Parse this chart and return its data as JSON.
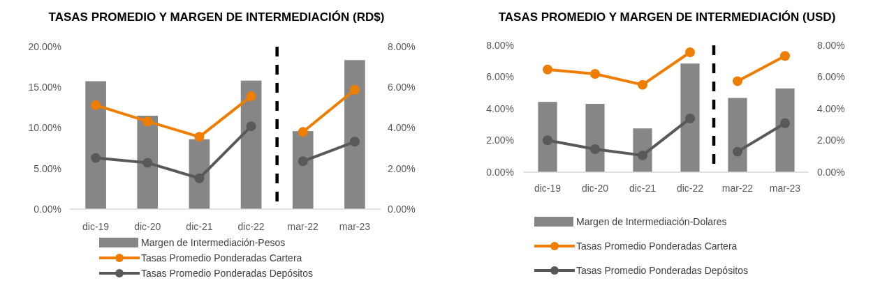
{
  "chart_data": [
    {
      "type": "bar",
      "title": "TASAS PROMEDIO Y MARGEN DE INTERMEDIACIÓN (RD$)",
      "categories": [
        "dic-19",
        "dic-20",
        "dic-21",
        "dic-22",
        "mar-22",
        "mar-23"
      ],
      "series": [
        {
          "name": "Margen de Intermediación-Pesos",
          "axis": "y2",
          "color": "#868686",
          "values": [
            6.3,
            4.6,
            3.44,
            6.33,
            3.84,
            7.34
          ]
        },
        {
          "name": "Tasas Promedio Ponderadas Cartera",
          "type": "line",
          "color": "#ef7d00",
          "values": [
            12.8,
            10.8,
            8.9,
            13.9,
            9.5,
            14.7
          ]
        },
        {
          "name": "Tasas Promedio Ponderadas Depósitos",
          "type": "line",
          "color": "#595959",
          "values": [
            6.3,
            5.7,
            3.8,
            10.2,
            5.9,
            8.3
          ]
        }
      ],
      "ylim": [
        0,
        20
      ],
      "yticks": [
        {
          "value": 0,
          "label": "0.00%"
        },
        {
          "value": 5,
          "label": "5.00%"
        },
        {
          "value": 10,
          "label": "10.00%"
        },
        {
          "value": 15,
          "label": "15.00%"
        },
        {
          "value": 20,
          "label": "20.00%"
        }
      ],
      "y2lim": [
        0,
        8
      ],
      "y2ticks": [
        {
          "value": 0,
          "label": "0.00%"
        },
        {
          "value": 2,
          "label": "2.00%"
        },
        {
          "value": 4,
          "label": "4.00%"
        },
        {
          "value": 6,
          "label": "6.00%"
        },
        {
          "value": 8,
          "label": "8.00%"
        }
      ],
      "marker": "circle",
      "legend": "bottom"
    },
    {
      "type": "bar",
      "title": "TASAS PROMEDIO Y MARGEN DE INTERMEDIACIÓN (USD)",
      "categories": [
        "dic-19",
        "dic-20",
        "dic-21",
        "dic-22",
        "mar-22",
        "mar-23"
      ],
      "series": [
        {
          "name": "Margen de Intermediación-Dolares",
          "axis": "y2",
          "color": "#868686",
          "values": [
            4.43,
            4.31,
            2.76,
            6.85,
            4.68,
            5.28
          ]
        },
        {
          "name": "Tasas Promedio Ponderadas Cartera",
          "type": "line",
          "color": "#ef7d00",
          "values": [
            6.47,
            6.2,
            5.51,
            7.56,
            5.74,
            7.33
          ]
        },
        {
          "name": "Tasas Promedio Ponderadas Depósitos",
          "type": "line",
          "color": "#595959",
          "values": [
            2.01,
            1.45,
            1.06,
            3.39,
            1.29,
            3.09
          ]
        }
      ],
      "ylim": [
        0,
        8
      ],
      "yticks": [
        {
          "value": 0,
          "label": "0.00%"
        },
        {
          "value": 2,
          "label": "2.00%"
        },
        {
          "value": 4,
          "label": "4.00%"
        },
        {
          "value": 6,
          "label": "6.00%"
        },
        {
          "value": 8,
          "label": "8.00%"
        }
      ],
      "y2lim": [
        0,
        8
      ],
      "y2ticks": [
        {
          "value": 0,
          "label": "0.00%"
        },
        {
          "value": 2,
          "label": "2.00%"
        },
        {
          "value": 4,
          "label": "4.00%"
        },
        {
          "value": 6,
          "label": "6.00%"
        },
        {
          "value": 8,
          "label": "8.00%"
        }
      ],
      "marker": "circle",
      "legend": "bottom"
    }
  ]
}
